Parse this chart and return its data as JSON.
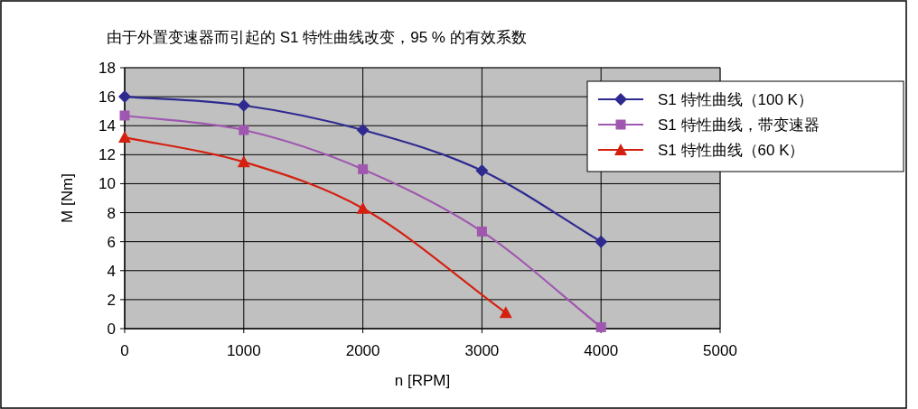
{
  "chart_data": {
    "type": "line",
    "title": "由于外置变速器而引起的 S1 特性曲线改变，95 % 的有效系数",
    "xlabel": "n [RPM]",
    "ylabel": "M [Nm]",
    "xlim": [
      0,
      5000
    ],
    "xticks": [
      0,
      1000,
      2000,
      3000,
      4000,
      5000
    ],
    "ylim": [
      0,
      18
    ],
    "yticks": [
      0,
      2,
      4,
      6,
      8,
      10,
      12,
      14,
      16,
      18
    ],
    "grid": true,
    "legend": "top right",
    "series": [
      {
        "name": "S1 特性曲线（100 K）",
        "color": "#2e2a90",
        "marker": "diamond",
        "x": [
          0,
          1000,
          2000,
          3000,
          4000
        ],
        "values": [
          16.0,
          15.4,
          13.7,
          10.9,
          6.0
        ]
      },
      {
        "name": "S1 特性曲线，带变速器",
        "color": "#a057b0",
        "marker": "square",
        "x": [
          0,
          1000,
          2000,
          3000,
          4000
        ],
        "values": [
          14.7,
          13.7,
          11.0,
          6.7,
          0.1
        ]
      },
      {
        "name": "S1 特性曲线（60 K）",
        "color": "#d42010",
        "marker": "triangle",
        "x": [
          0,
          1000,
          2000,
          3200
        ],
        "values": [
          13.2,
          11.5,
          8.3,
          1.1
        ]
      }
    ]
  }
}
